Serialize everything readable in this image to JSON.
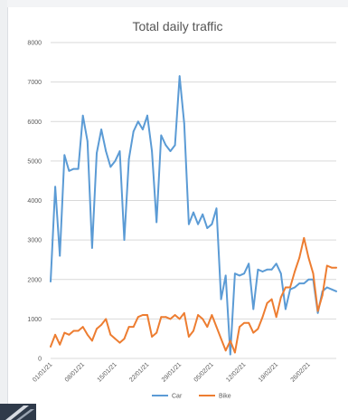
{
  "chart_data": {
    "type": "line",
    "title": "Total daily traffic",
    "xlabel": "",
    "ylabel": "",
    "ylim": [
      0,
      8000
    ],
    "yticks": [
      0,
      1000,
      2000,
      3000,
      4000,
      5000,
      6000,
      7000,
      8000
    ],
    "ytick_labels": [
      "0",
      "1000",
      "2000",
      "3000",
      "4000",
      "5000",
      "6000",
      "7000",
      "8000"
    ],
    "x": [
      "01/01/21",
      "02/01/21",
      "03/01/21",
      "04/01/21",
      "05/01/21",
      "06/01/21",
      "07/01/21",
      "08/01/21",
      "09/01/21",
      "10/01/21",
      "11/01/21",
      "12/01/21",
      "13/01/21",
      "14/01/21",
      "15/01/21",
      "16/01/21",
      "17/01/21",
      "18/01/21",
      "19/01/21",
      "20/01/21",
      "21/01/21",
      "22/01/21",
      "23/01/21",
      "24/01/21",
      "25/01/21",
      "26/01/21",
      "27/01/21",
      "28/01/21",
      "29/01/21",
      "30/01/21",
      "31/01/21",
      "01/02/21",
      "02/02/21",
      "03/02/21",
      "04/02/21",
      "05/02/21",
      "06/02/21",
      "07/02/21",
      "08/02/21",
      "09/02/21",
      "10/02/21",
      "11/02/21",
      "12/02/21",
      "13/02/21",
      "14/02/21",
      "15/02/21",
      "16/02/21",
      "17/02/21",
      "18/02/21",
      "19/02/21",
      "20/02/21",
      "21/02/21",
      "22/02/21",
      "23/02/21",
      "24/02/21",
      "25/02/21",
      "26/02/21",
      "27/02/21",
      "28/02/21",
      "01/03/21",
      "02/03/21",
      "03/03/21",
      "04/03/21"
    ],
    "xtick_labels": [
      "01/01/21",
      "08/01/21",
      "15/01/21",
      "22/01/21",
      "29/01/21",
      "05/02/21",
      "12/02/21",
      "19/02/21",
      "26/02/21"
    ],
    "grid": true,
    "legend_position": "bottom",
    "series": [
      {
        "name": "Car",
        "color": "#5b9bd5",
        "values": [
          1950,
          4350,
          2600,
          5150,
          4750,
          4800,
          4800,
          6150,
          5500,
          2800,
          5200,
          5800,
          5250,
          4850,
          5000,
          5250,
          3000,
          5050,
          5750,
          6000,
          5800,
          6150,
          5250,
          3450,
          5650,
          5400,
          5250,
          5400,
          7150,
          5950,
          3400,
          3700,
          3400,
          3650,
          3300,
          3400,
          3800,
          1500,
          2100,
          100,
          2150,
          2100,
          2150,
          2400,
          1250,
          2250,
          2200,
          2250,
          2250,
          2400,
          2150,
          1250,
          1750,
          1800,
          1900,
          1900,
          2000,
          2000,
          1150,
          1700,
          1800,
          1750,
          1700
        ]
      },
      {
        "name": "Bike",
        "color": "#ed7d31",
        "values": [
          300,
          600,
          350,
          650,
          600,
          700,
          700,
          800,
          600,
          450,
          750,
          850,
          1000,
          600,
          500,
          400,
          500,
          800,
          800,
          1050,
          1100,
          1100,
          550,
          650,
          1050,
          1050,
          1000,
          1100,
          1000,
          1150,
          550,
          700,
          1100,
          1000,
          800,
          1100,
          800,
          500,
          200,
          450,
          150,
          800,
          900,
          900,
          650,
          750,
          1050,
          1400,
          1500,
          1050,
          1550,
          1800,
          1800,
          2200,
          2550,
          3050,
          2550,
          2150,
          1200,
          1600,
          2350,
          2300,
          2300
        ]
      }
    ]
  }
}
